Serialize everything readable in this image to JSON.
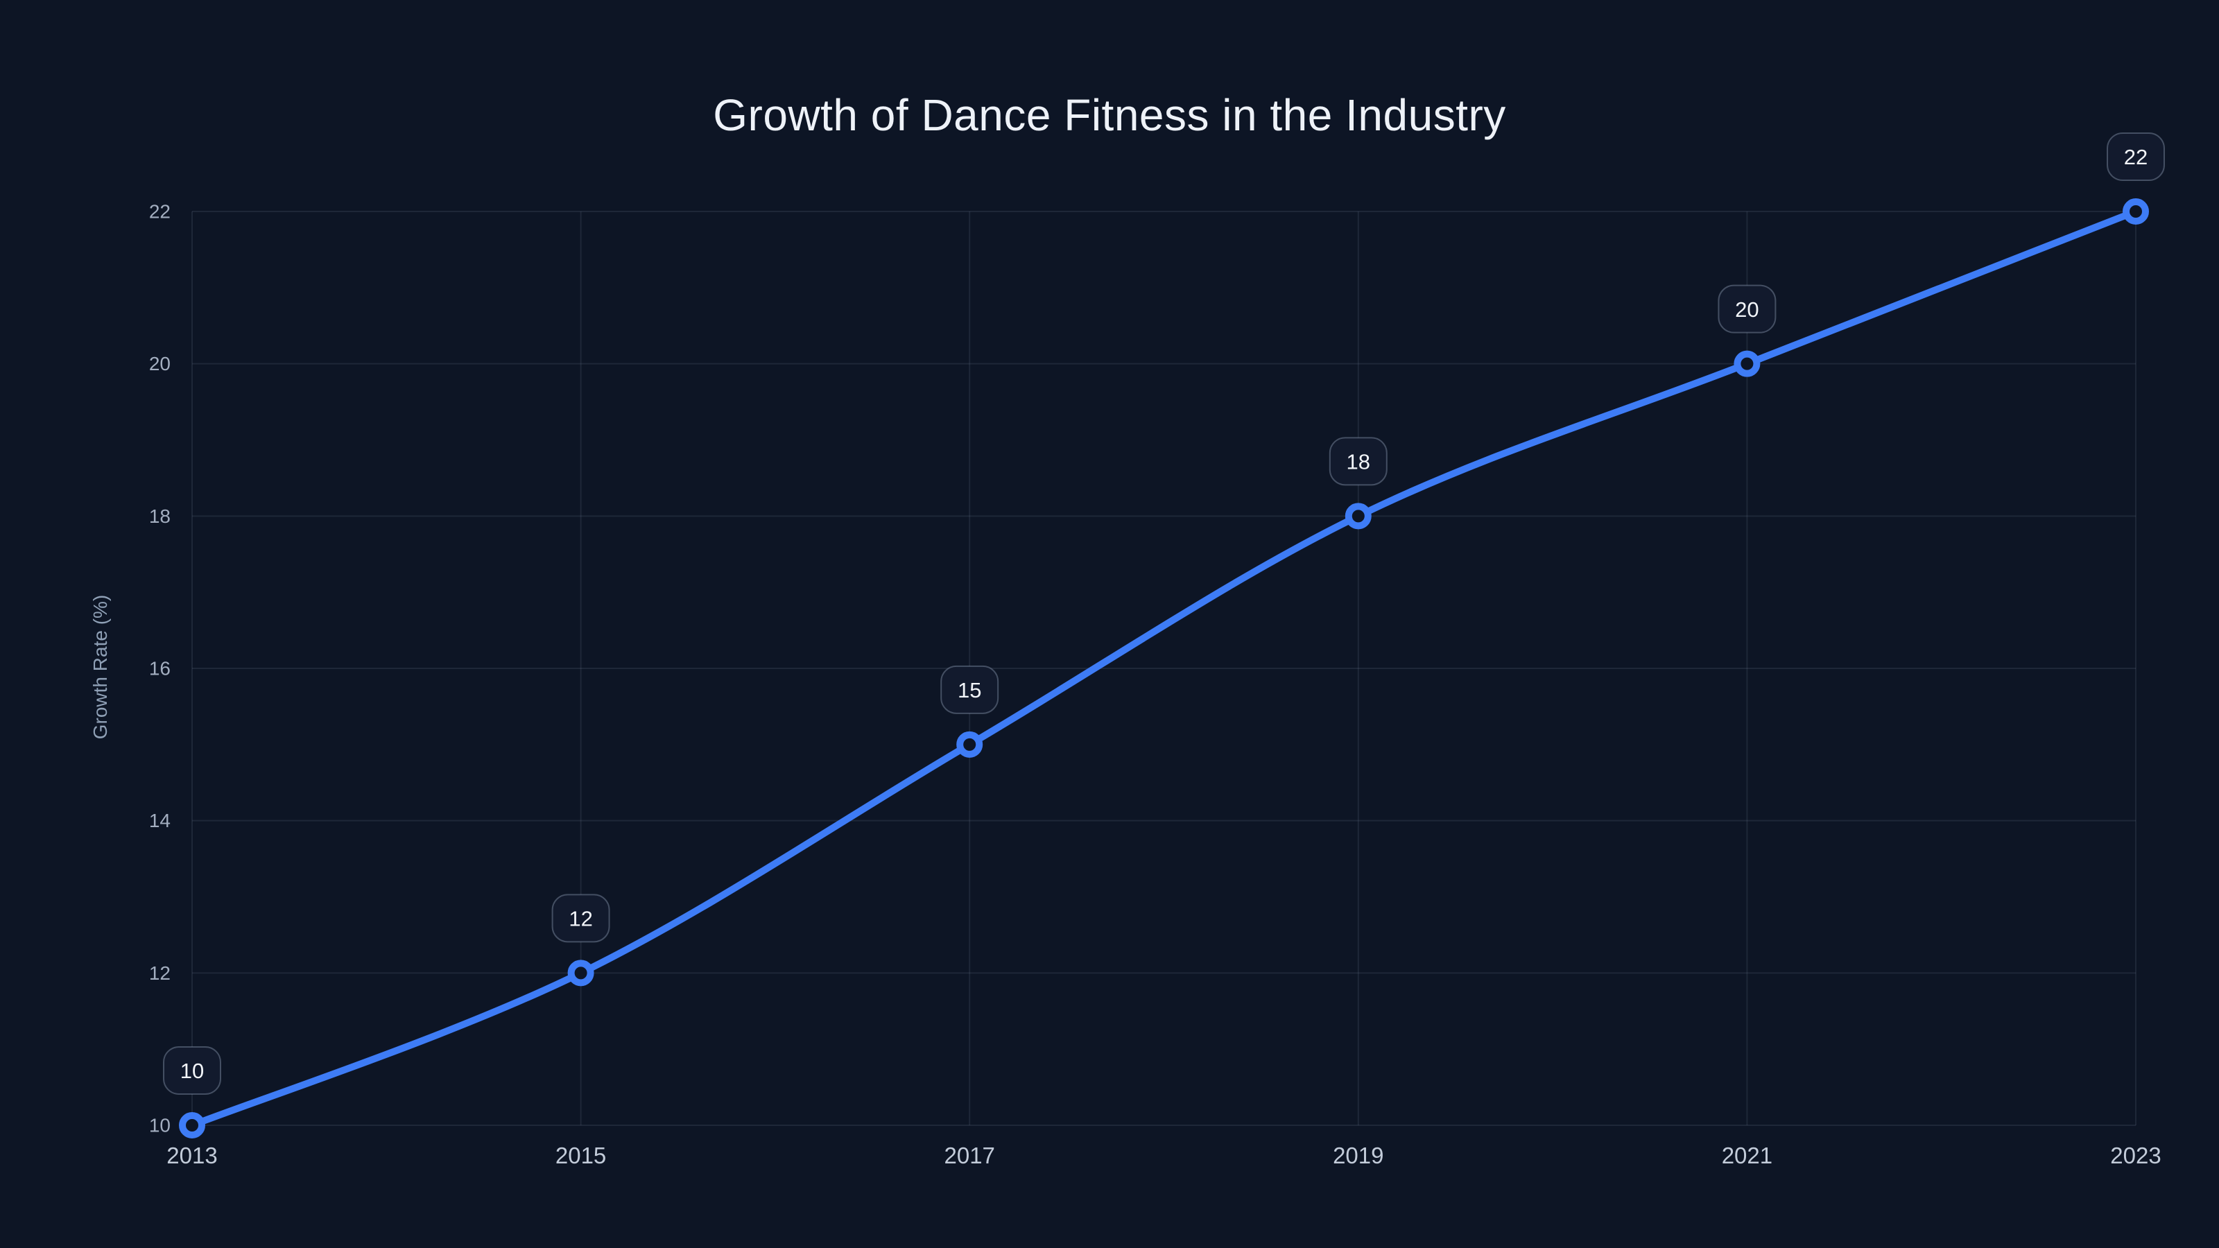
{
  "chart_data": {
    "type": "line",
    "title": "Growth of Dance Fitness in the Industry",
    "xlabel": "",
    "ylabel": "Growth Rate (%)",
    "x": [
      2013,
      2015,
      2017,
      2019,
      2021,
      2023
    ],
    "values": [
      10,
      12,
      15,
      18,
      20,
      22
    ],
    "point_labels": [
      "10",
      "12",
      "15",
      "18",
      "20",
      "22"
    ],
    "x_tick_labels": [
      "2013",
      "2015",
      "2017",
      "2019",
      "2021",
      "2023"
    ],
    "y_tick_labels": [
      "10",
      "12",
      "14",
      "16",
      "18",
      "20",
      "22"
    ],
    "y_ticks": [
      10,
      12,
      14,
      16,
      18,
      20,
      22
    ],
    "xlim": [
      2013,
      2023
    ],
    "ylim": [
      10,
      22
    ],
    "grid": true,
    "legend": false,
    "line_smooth": true,
    "colors": {
      "background": "#0d1525",
      "line": "#3e7cf6",
      "marker_fill": "#0d1525",
      "marker_stroke": "#3e7cf6",
      "grid": "rgba(148,163,184,0.13)",
      "badge_fill": "#121a2d",
      "badge_border": "rgba(148,163,184,0.40)",
      "badge_text": "#f2f5f9",
      "title_text": "#eef2f8",
      "x_tick_text": "#c3ccda",
      "y_tick_text": "#a3aec0",
      "axis_title_text": "#8fa0b6"
    }
  }
}
